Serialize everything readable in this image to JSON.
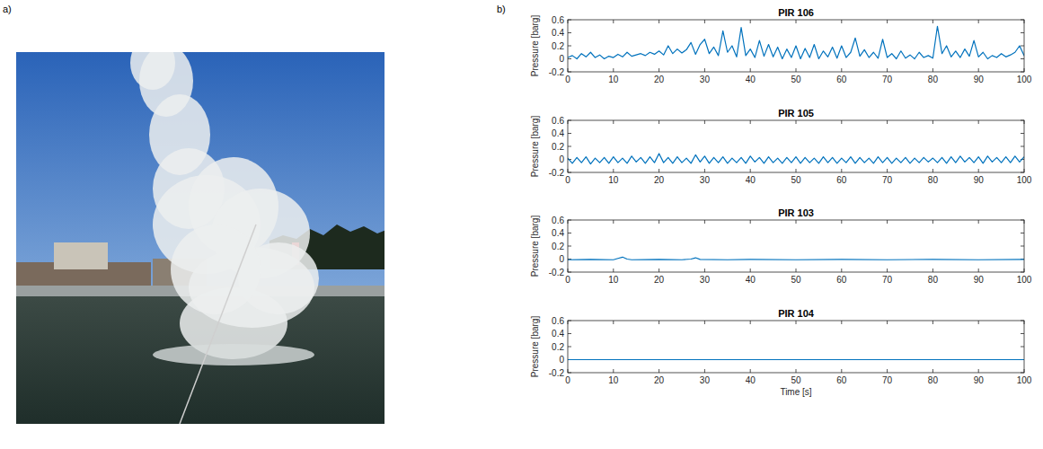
{
  "panel_labels": [
    "a)",
    "b)"
  ],
  "chart_data": [
    {
      "type": "line",
      "title": "PIR 106",
      "y_label": "Pressure [barg]",
      "color": "#0072bd",
      "xlim": [
        0,
        100
      ],
      "xticks": [
        0,
        10,
        20,
        30,
        40,
        50,
        60,
        70,
        80,
        90,
        100
      ],
      "ylim": [
        -0.2,
        0.6
      ],
      "yticks": [
        -0.2,
        0,
        0.2,
        0.4,
        0.6
      ],
      "x": [
        0,
        1,
        2,
        3,
        4,
        5,
        6,
        7,
        8,
        9,
        10,
        11,
        12,
        13,
        14,
        15,
        16,
        17,
        18,
        19,
        20,
        21,
        22,
        23,
        24,
        25,
        26,
        27,
        28,
        29,
        30,
        31,
        32,
        33,
        34,
        35,
        36,
        37,
        38,
        39,
        40,
        41,
        42,
        43,
        44,
        45,
        46,
        47,
        48,
        49,
        50,
        51,
        52,
        53,
        54,
        55,
        56,
        57,
        58,
        59,
        60,
        61,
        62,
        63,
        64,
        65,
        66,
        67,
        68,
        69,
        70,
        71,
        72,
        73,
        74,
        75,
        76,
        77,
        78,
        79,
        80,
        81,
        82,
        83,
        84,
        85,
        86,
        87,
        88,
        89,
        90,
        91,
        92,
        93,
        94,
        95,
        96,
        97,
        98,
        99,
        100
      ],
      "values": [
        0.02,
        0.05,
        0.0,
        0.08,
        0.03,
        0.1,
        0.02,
        0.06,
        0.0,
        0.04,
        0.02,
        0.07,
        0.03,
        0.1,
        0.04,
        0.06,
        0.08,
        0.05,
        0.1,
        0.07,
        0.12,
        0.06,
        0.2,
        0.08,
        0.15,
        0.09,
        0.14,
        0.25,
        0.07,
        0.22,
        0.3,
        0.08,
        0.18,
        0.05,
        0.43,
        0.1,
        0.2,
        0.03,
        0.48,
        0.05,
        0.15,
        0.02,
        0.28,
        0.04,
        0.22,
        0.03,
        0.18,
        0.0,
        0.15,
        0.02,
        0.2,
        0.0,
        0.16,
        0.02,
        0.22,
        0.0,
        0.12,
        0.03,
        0.18,
        0.01,
        0.2,
        0.02,
        0.1,
        0.32,
        0.04,
        0.14,
        0.02,
        0.1,
        0.01,
        0.3,
        0.02,
        0.08,
        0.0,
        0.12,
        0.01,
        0.06,
        0.0,
        0.1,
        0.02,
        0.05,
        0.01,
        0.5,
        0.08,
        0.2,
        0.03,
        0.12,
        0.02,
        0.15,
        0.04,
        0.28,
        0.03,
        0.1,
        0.0,
        0.05,
        0.02,
        0.08,
        0.03,
        0.06,
        0.1,
        0.2,
        0.05
      ]
    },
    {
      "type": "line",
      "title": "PIR 105",
      "y_label": "Pressure [barg]",
      "color": "#0072bd",
      "xlim": [
        0,
        100
      ],
      "xticks": [
        0,
        10,
        20,
        30,
        40,
        50,
        60,
        70,
        80,
        90,
        100
      ],
      "ylim": [
        -0.2,
        0.6
      ],
      "yticks": [
        -0.2,
        0,
        0.2,
        0.4,
        0.6
      ],
      "x": [
        0,
        1,
        2,
        3,
        4,
        5,
        6,
        7,
        8,
        9,
        10,
        11,
        12,
        13,
        14,
        15,
        16,
        17,
        18,
        19,
        20,
        21,
        22,
        23,
        24,
        25,
        26,
        27,
        28,
        29,
        30,
        31,
        32,
        33,
        34,
        35,
        36,
        37,
        38,
        39,
        40,
        41,
        42,
        43,
        44,
        45,
        46,
        47,
        48,
        49,
        50,
        51,
        52,
        53,
        54,
        55,
        56,
        57,
        58,
        59,
        60,
        61,
        62,
        63,
        64,
        65,
        66,
        67,
        68,
        69,
        70,
        71,
        72,
        73,
        74,
        75,
        76,
        77,
        78,
        79,
        80,
        81,
        82,
        83,
        84,
        85,
        86,
        87,
        88,
        89,
        90,
        91,
        92,
        93,
        94,
        95,
        96,
        97,
        98,
        99,
        100
      ],
      "values": [
        0.02,
        -0.06,
        0.03,
        -0.05,
        0.04,
        -0.07,
        0.02,
        -0.05,
        0.03,
        -0.06,
        0.04,
        -0.05,
        0.02,
        -0.06,
        0.05,
        -0.04,
        0.03,
        -0.06,
        0.04,
        -0.05,
        0.09,
        -0.05,
        0.03,
        -0.06,
        0.04,
        -0.05,
        0.02,
        -0.06,
        0.07,
        -0.04,
        0.05,
        -0.06,
        0.03,
        -0.05,
        0.04,
        -0.06,
        0.02,
        -0.05,
        0.03,
        -0.06,
        0.05,
        -0.04,
        0.03,
        -0.06,
        0.04,
        -0.05,
        0.02,
        -0.06,
        0.03,
        -0.05,
        0.04,
        -0.06,
        0.03,
        -0.05,
        0.02,
        -0.06,
        0.04,
        -0.05,
        0.03,
        -0.06,
        0.02,
        -0.05,
        0.04,
        -0.06,
        0.03,
        -0.05,
        0.02,
        -0.06,
        0.04,
        -0.05,
        0.03,
        -0.06,
        0.02,
        -0.05,
        0.03,
        -0.06,
        0.02,
        -0.05,
        0.03,
        -0.04,
        0.02,
        -0.05,
        0.03,
        -0.06,
        0.04,
        -0.05,
        0.05,
        -0.04,
        0.03,
        -0.05,
        0.04,
        -0.06,
        0.05,
        -0.04,
        0.03,
        -0.05,
        0.04,
        -0.05,
        0.05,
        -0.04,
        0.04
      ]
    },
    {
      "type": "line",
      "title": "PIR 103",
      "y_label": "Pressure [barg]",
      "color": "#0072bd",
      "xlim": [
        0,
        100
      ],
      "xticks": [
        0,
        10,
        20,
        30,
        40,
        50,
        60,
        70,
        80,
        90,
        100
      ],
      "ylim": [
        -0.2,
        0.6
      ],
      "yticks": [
        -0.2,
        0,
        0.2,
        0.4,
        0.6
      ],
      "x": [
        0,
        5,
        10,
        11,
        12,
        13,
        14,
        20,
        25,
        27,
        28,
        29,
        35,
        40,
        50,
        60,
        70,
        80,
        90,
        100
      ],
      "values": [
        -0.01,
        -0.005,
        -0.01,
        0.01,
        0.03,
        0.0,
        -0.01,
        -0.005,
        -0.01,
        0.0,
        0.02,
        -0.005,
        -0.01,
        -0.005,
        -0.01,
        -0.005,
        -0.01,
        -0.005,
        -0.01,
        -0.005
      ]
    },
    {
      "type": "line",
      "title": "PIR 104",
      "y_label": "Pressure [barg]",
      "x_label": "Time [s]",
      "color": "#0072bd",
      "xlim": [
        0,
        100
      ],
      "xticks": [
        0,
        10,
        20,
        30,
        40,
        50,
        60,
        70,
        80,
        90,
        100
      ],
      "ylim": [
        -0.2,
        0.6
      ],
      "yticks": [
        -0.2,
        0,
        0.2,
        0.4,
        0.6
      ],
      "x": [
        0,
        100
      ],
      "values": [
        0,
        0
      ]
    }
  ]
}
